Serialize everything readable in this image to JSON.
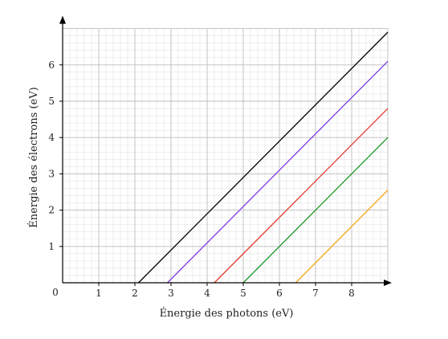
{
  "chart_data": {
    "type": "line",
    "title": "",
    "xlabel": "Énergie des photons (eV)",
    "ylabel": "Énergie des électrons (eV)",
    "xlim": [
      0,
      9
    ],
    "ylim": [
      0,
      7
    ],
    "x_ticks": [
      "1",
      "2",
      "3",
      "4",
      "5",
      "6",
      "7",
      "8"
    ],
    "y_ticks": [
      "1",
      "2",
      "3",
      "4",
      "5",
      "6"
    ],
    "origin_label": "0",
    "grid": {
      "major": 1,
      "minor": 0.2,
      "major_color": "#bdbdbd",
      "minor_color": "#e3e3e3"
    },
    "legend": "none",
    "series": [
      {
        "color": "#000000",
        "x": [
          2.1,
          9.0
        ],
        "y": [
          0,
          6.9
        ]
      },
      {
        "color": "#7b3fe4",
        "x": [
          2.9,
          9.0
        ],
        "y": [
          0,
          6.1
        ]
      },
      {
        "color": "#e53a2f",
        "x": [
          4.2,
          9.0
        ],
        "y": [
          0,
          4.8
        ]
      },
      {
        "color": "#1a9a2a",
        "x": [
          5.0,
          9.0
        ],
        "y": [
          0,
          4.0
        ]
      },
      {
        "color": "#f4a51c",
        "x": [
          6.45,
          9.0
        ],
        "y": [
          0,
          2.55
        ]
      }
    ]
  }
}
